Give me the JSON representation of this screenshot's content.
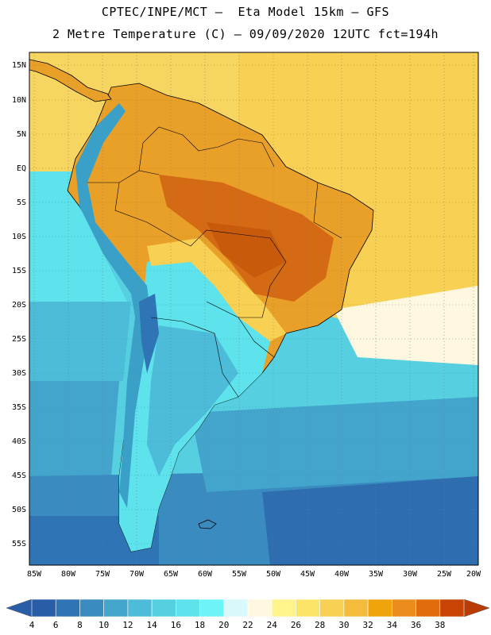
{
  "header": {
    "title_line1": "CPTEC/INPE/MCT –  Eta Model 15km – GFS",
    "title_line2": "2 Metre Temperature (C) – 09/09/2020 12UTC fct=194h"
  },
  "map": {
    "lat_labels": [
      "15N",
      "10N",
      "5N",
      "EQ",
      "5S",
      "10S",
      "15S",
      "20S",
      "25S",
      "30S",
      "35S",
      "40S",
      "45S",
      "50S",
      "55S"
    ],
    "lon_labels": [
      "85W",
      "80W",
      "75W",
      "70W",
      "65W",
      "60W",
      "55W",
      "50W",
      "45W",
      "40W",
      "35W",
      "30W",
      "25W",
      "20W"
    ],
    "colors": {
      "land_hot": "#e8a028",
      "land_very_hot": "#d46a14",
      "ocean_warm": "#f6d560",
      "ocean_cool": "#60d4e4",
      "ocean_cold": "#2e6eb0",
      "andes_cold": "#3aa0c8"
    }
  },
  "colorbar": {
    "levels": [
      "4",
      "6",
      "8",
      "10",
      "12",
      "14",
      "16",
      "18",
      "20",
      "22",
      "24",
      "26",
      "28",
      "30",
      "32",
      "34",
      "36",
      "38"
    ],
    "colors": [
      "#2a5da8",
      "#2f74b4",
      "#3a8cc0",
      "#43a4cc",
      "#4cbcd8",
      "#56d0e0",
      "#5ee2ec",
      "#6cf4f8",
      "#d8f8fc",
      "#fff8e0",
      "#fff48c",
      "#fce468",
      "#f8d054",
      "#f4bc3c",
      "#f0a40c",
      "#ec8c1c",
      "#e06c0c",
      "#c84404"
    ],
    "min_arrow_color": "#2a5da8",
    "max_arrow_color": "#b83c04"
  }
}
